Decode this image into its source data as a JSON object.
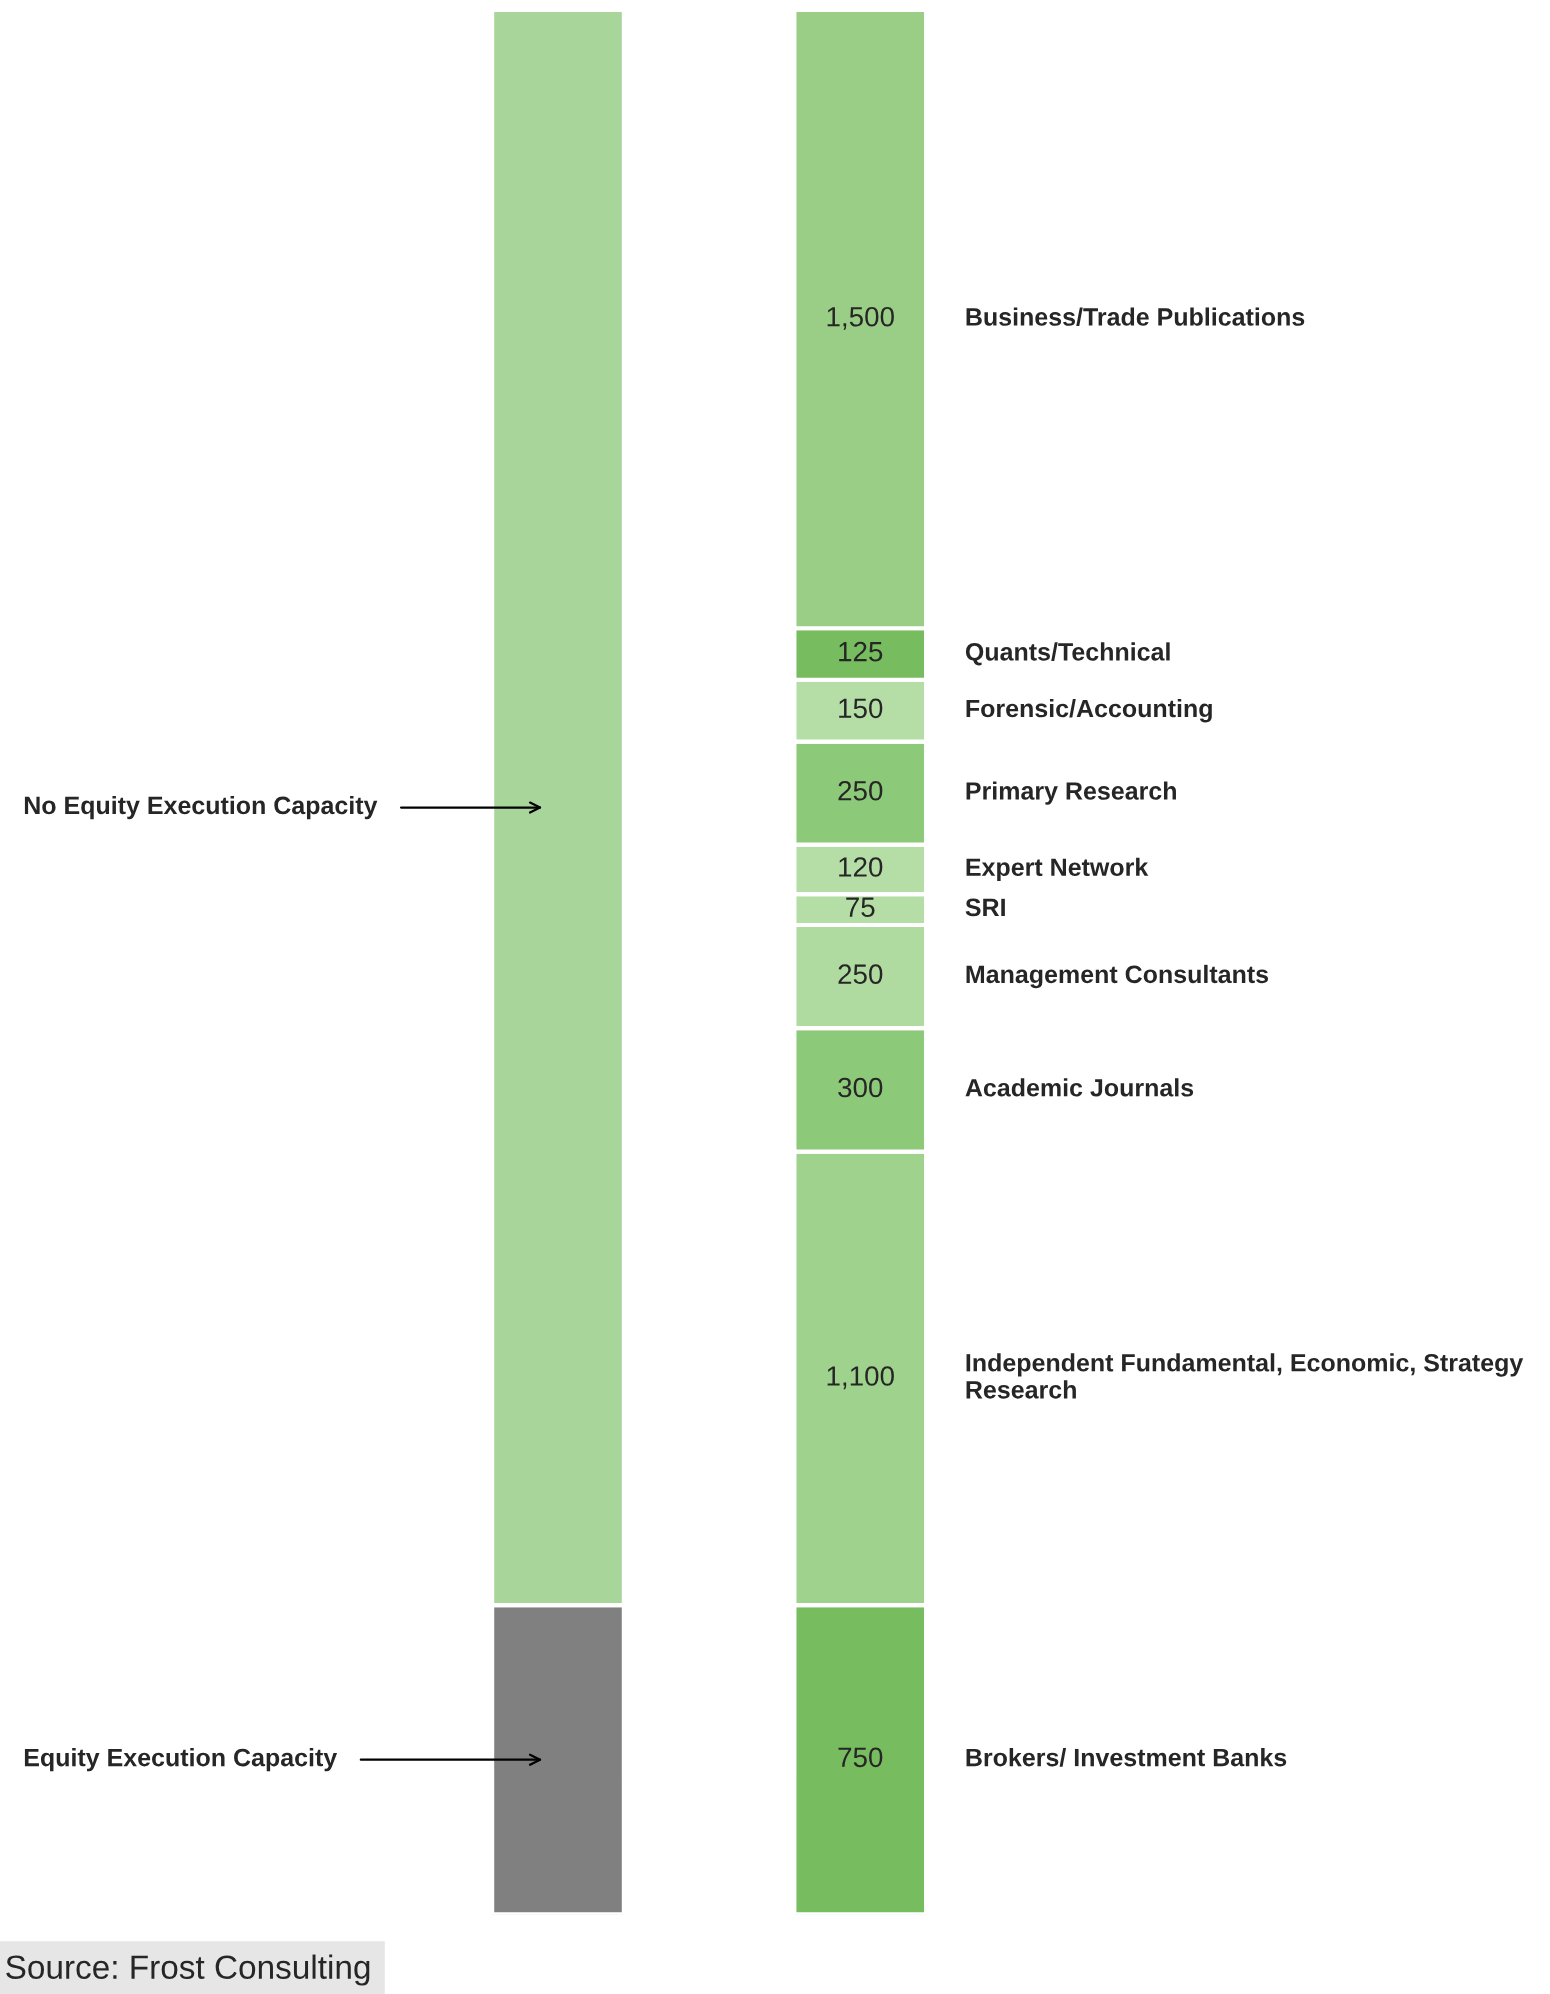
{
  "chart_data": {
    "type": "bar",
    "stacked": true,
    "categories": [
      null,
      null
    ],
    "legend": false,
    "series": [
      {
        "name": "Equity Execution Capacity",
        "color": "#808080",
        "values": [
          750,
          null
        ],
        "value_labels": [
          null,
          null
        ]
      },
      {
        "name": "No Equity Execution Capacity",
        "color": "#a8d69a",
        "values": [
          3870,
          null
        ],
        "value_labels": [
          null,
          null
        ]
      },
      {
        "name": "Brokers/ Investment Banks",
        "color": "#77bc5f",
        "values": [
          null,
          750
        ],
        "value_labels": [
          null,
          "750"
        ]
      },
      {
        "name": "Independent Fundamental, Economic, Strategy Research",
        "color": "#9fd28c",
        "values": [
          null,
          1100
        ],
        "value_labels": [
          null,
          "1,100"
        ]
      },
      {
        "name": "Academic Journals",
        "color": "#8cc978",
        "values": [
          null,
          300
        ],
        "value_labels": [
          null,
          "300"
        ]
      },
      {
        "name": "Management Consultants",
        "color": "#b0dba0",
        "values": [
          null,
          250
        ],
        "value_labels": [
          null,
          "250"
        ]
      },
      {
        "name": "SRI",
        "color": "#b5dea6",
        "values": [
          null,
          75
        ],
        "value_labels": [
          null,
          "75"
        ]
      },
      {
        "name": "Expert Network",
        "color": "#b5dea6",
        "values": [
          null,
          120
        ],
        "value_labels": [
          null,
          "120"
        ]
      },
      {
        "name": "Primary Research",
        "color": "#8cc978",
        "values": [
          null,
          250
        ],
        "value_labels": [
          null,
          "250"
        ]
      },
      {
        "name": "Forensic/Accounting",
        "color": "#b5dea6",
        "values": [
          null,
          150
        ],
        "value_labels": [
          null,
          "150"
        ]
      },
      {
        "name": "Quants/Technical",
        "color": "#77bc5f",
        "values": [
          null,
          125
        ],
        "value_labels": [
          null,
          "125"
        ]
      },
      {
        "name": "Business/Trade Publications",
        "color": "#9acd85",
        "values": [
          null,
          1500
        ],
        "value_labels": [
          null,
          "1,500"
        ]
      }
    ],
    "annotations": [
      "Source: Frost Consulting"
    ]
  }
}
